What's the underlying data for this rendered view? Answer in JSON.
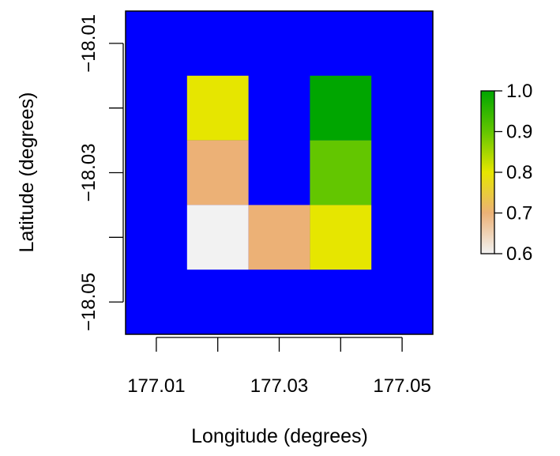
{
  "chart_data": {
    "type": "heatmap",
    "xlabel": "Longitude (degrees)",
    "ylabel": "Latitude (degrees)",
    "xlim": [
      177.005,
      177.055
    ],
    "ylim": [
      -18.055,
      -18.005
    ],
    "x_ticks": [
      177.01,
      177.02,
      177.03,
      177.04,
      177.05
    ],
    "x_tick_labels": [
      "177.01",
      "",
      "177.03",
      "",
      "177.05"
    ],
    "y_ticks": [
      -18.01,
      -18.02,
      -18.03,
      -18.04,
      -18.05
    ],
    "y_tick_labels": [
      "−18.01",
      "",
      "−18.03",
      "",
      "−18.05"
    ],
    "background_color": "#0000FF",
    "cells": [
      {
        "x": 177.02,
        "y": -18.02,
        "value": 0.8,
        "color": "#E6E600"
      },
      {
        "x": 177.04,
        "y": -18.02,
        "value": 1.0,
        "color": "#00A600"
      },
      {
        "x": 177.02,
        "y": -18.03,
        "value": 0.7,
        "color": "#ECB176"
      },
      {
        "x": 177.04,
        "y": -18.03,
        "value": 0.9,
        "color": "#63C600"
      },
      {
        "x": 177.02,
        "y": -18.04,
        "value": 0.6,
        "color": "#F2F2F2"
      },
      {
        "x": 177.03,
        "y": -18.04,
        "value": 0.7,
        "color": "#ECB176"
      },
      {
        "x": 177.04,
        "y": -18.04,
        "value": 0.8,
        "color": "#E6E600"
      }
    ],
    "cell_size": 0.01,
    "legend": {
      "placement": "right",
      "range": [
        0.6,
        1.0
      ],
      "ticks": [
        1.0,
        0.9,
        0.8,
        0.7,
        0.6
      ],
      "tick_labels": [
        "1.0",
        "0.9",
        "0.8",
        "0.7",
        "0.6"
      ],
      "stops": [
        {
          "value": 0.6,
          "color": "#F2F2F2"
        },
        {
          "value": 0.7,
          "color": "#ECB176"
        },
        {
          "value": 0.8,
          "color": "#E6E600"
        },
        {
          "value": 0.9,
          "color": "#63C600"
        },
        {
          "value": 1.0,
          "color": "#00A600"
        }
      ]
    }
  }
}
